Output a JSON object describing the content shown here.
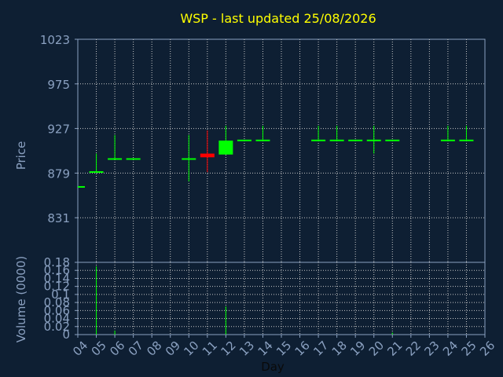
{
  "title": "WSP - last updated 25/08/2026",
  "colors": {
    "background": "#0e1f33",
    "title": "#ffff00",
    "axis_text": "#8aa0c0",
    "grid": "#c8c8c8",
    "frame": "#8aa0c0",
    "up": "#00ff00",
    "down": "#ff0000"
  },
  "chart_data": [
    {
      "type": "candlestick",
      "ylabel": "Price",
      "ylim": [
        783,
        1023
      ],
      "yticks": [
        831,
        879,
        927,
        975,
        1023
      ],
      "grid": true,
      "candles": [
        {
          "x": "04",
          "open": 865,
          "high": 865,
          "low": 865,
          "close": 865
        },
        {
          "x": "05",
          "open": 881,
          "high": 900,
          "low": 881,
          "close": 881
        },
        {
          "x": "06",
          "open": 895,
          "high": 920,
          "low": 895,
          "close": 895
        },
        {
          "x": "07",
          "open": 895,
          "high": 895,
          "low": 895,
          "close": 895
        },
        {
          "x": "10",
          "open": 895,
          "high": 920,
          "low": 870,
          "close": 895
        },
        {
          "x": "11",
          "open": 900,
          "high": 925,
          "low": 880,
          "close": 896
        },
        {
          "x": "12",
          "open": 899,
          "high": 930,
          "low": 899,
          "close": 914
        },
        {
          "x": "13",
          "open": 915,
          "high": 915,
          "low": 915,
          "close": 915
        },
        {
          "x": "14",
          "open": 915,
          "high": 930,
          "low": 915,
          "close": 915
        },
        {
          "x": "17",
          "open": 915,
          "high": 930,
          "low": 915,
          "close": 915
        },
        {
          "x": "18",
          "open": 915,
          "high": 930,
          "low": 915,
          "close": 915
        },
        {
          "x": "19",
          "open": 915,
          "high": 915,
          "low": 915,
          "close": 915
        },
        {
          "x": "20",
          "open": 915,
          "high": 930,
          "low": 900,
          "close": 915
        },
        {
          "x": "21",
          "open": 915,
          "high": 915,
          "low": 915,
          "close": 915
        },
        {
          "x": "24",
          "open": 915,
          "high": 930,
          "low": 915,
          "close": 915
        },
        {
          "x": "25",
          "open": 915,
          "high": 930,
          "low": 915,
          "close": 915
        }
      ]
    },
    {
      "type": "bar",
      "ylabel": "Volume (0000)",
      "xlabel": "Day",
      "ylim": [
        0,
        0.18
      ],
      "yticks": [
        0,
        0.02,
        0.04,
        0.06,
        0.08,
        0.1,
        0.12,
        0.14,
        0.16,
        0.18
      ],
      "ytick_labels": [
        "0",
        "0.02",
        "0.04",
        "0.06",
        "0.08",
        "0.1",
        "0.12",
        "0.14",
        "0.16",
        "0.18"
      ],
      "grid": true,
      "categories": [
        "04",
        "05",
        "06",
        "07",
        "08",
        "09",
        "10",
        "11",
        "12",
        "13",
        "14",
        "15",
        "16",
        "17",
        "18",
        "19",
        "20",
        "21",
        "22",
        "23",
        "24",
        "25",
        "26"
      ],
      "values": [
        0,
        0.17,
        0.01,
        0,
        0,
        0,
        0,
        0,
        0.07,
        0,
        0,
        0,
        0,
        0,
        0,
        0,
        0,
        0.005,
        0,
        0,
        0,
        0,
        0
      ]
    }
  ]
}
